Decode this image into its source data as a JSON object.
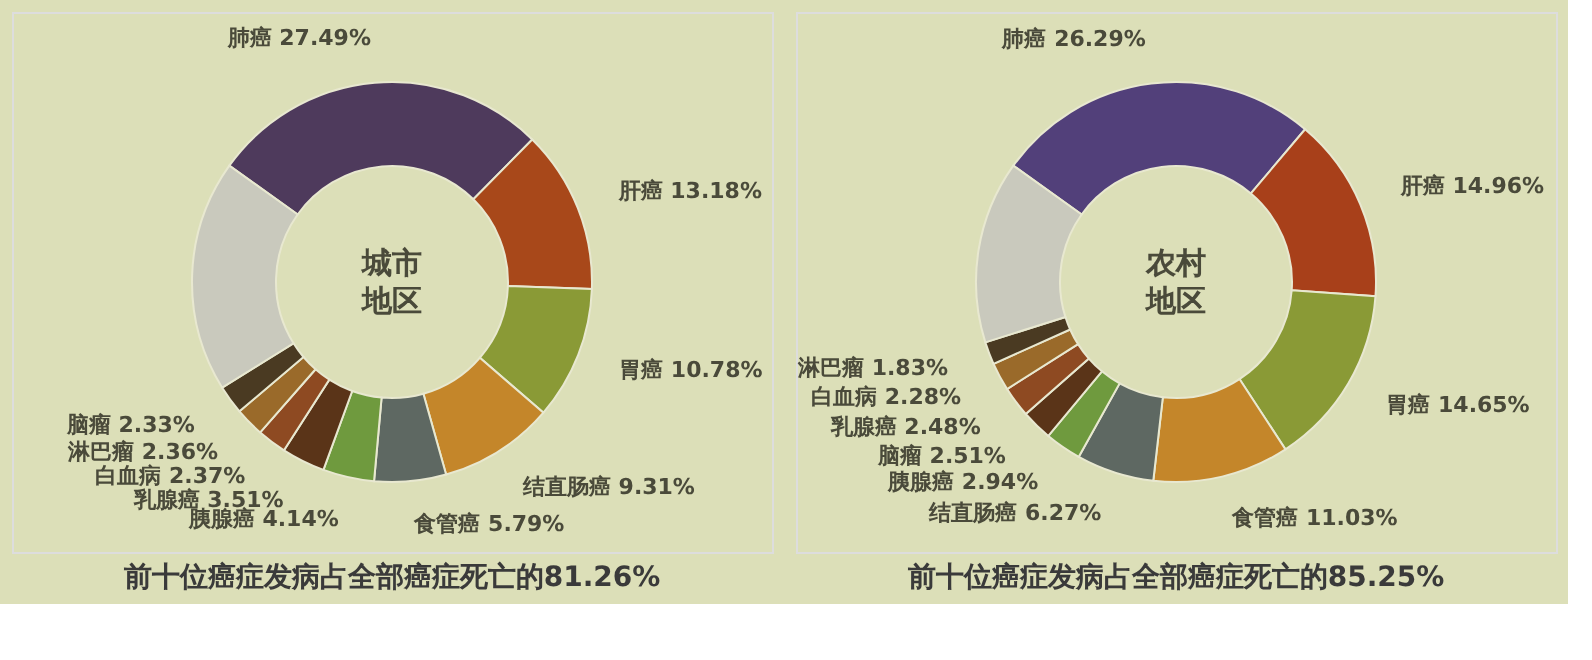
{
  "chart_data": [
    {
      "type": "donut",
      "title": "前十位癌症发病占全部癌症死亡的81.26%",
      "annotations": [
        "城市",
        "地区"
      ],
      "categories": [
        "肺癌",
        "肝癌",
        "胃癌",
        "结直肠癌",
        "食管癌",
        "胰腺癌",
        "乳腺癌",
        "白血病",
        "淋巴瘤",
        "脑瘤",
        null
      ],
      "values": [
        27.49,
        13.18,
        10.78,
        9.31,
        5.79,
        4.14,
        3.51,
        2.37,
        2.36,
        2.33,
        18.74
      ],
      "value_labels": [
        "27.49%",
        "13.18%",
        "10.78%",
        "9.31%",
        "5.79%",
        "4.14%",
        "3.51%",
        "2.37%",
        "2.36%",
        "2.33%",
        null
      ],
      "colors": [
        "#4e3a5c",
        "#a8481a",
        "#8a9a36",
        "#c4862a",
        "#5e6862",
        "#6f9a3e",
        "#5a3418",
        "#8e4a22",
        "#9a6a2a",
        "#4a3a22",
        "#c9c9bd"
      ],
      "legend": false
    },
    {
      "type": "donut",
      "title": "前十位癌症发病占全部癌症死亡的85.25%",
      "annotations": [
        "农村",
        "地区"
      ],
      "categories": [
        "肺癌",
        "肝癌",
        "胃癌",
        "食管癌",
        "结直肠癌",
        "胰腺癌",
        "脑瘤",
        "乳腺癌",
        "白血病",
        "淋巴瘤",
        null
      ],
      "values": [
        26.29,
        14.96,
        14.65,
        11.03,
        6.27,
        2.94,
        2.51,
        2.48,
        2.28,
        1.83,
        14.76
      ],
      "value_labels": [
        "26.29%",
        "14.96%",
        "14.65%",
        "11.03%",
        "6.27%",
        "2.94%",
        "2.51%",
        "2.48%",
        "2.28%",
        "1.83%",
        null
      ],
      "colors": [
        "#52407a",
        "#a8401a",
        "#8a9a36",
        "#c4862a",
        "#5e6862",
        "#6f9a3e",
        "#5a3418",
        "#8e4a22",
        "#9a6a2a",
        "#4a3a22",
        "#c9c9bd"
      ],
      "legend": false
    }
  ]
}
